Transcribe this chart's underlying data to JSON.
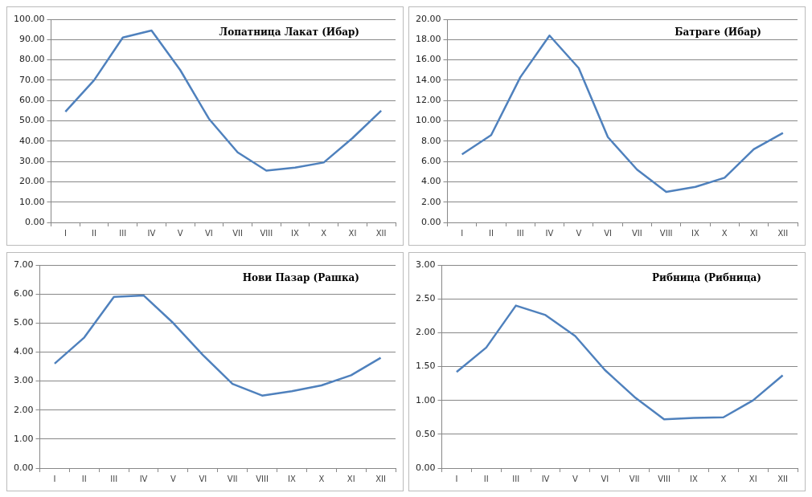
{
  "chart_data": [
    {
      "type": "line",
      "title": "Лопатница Лакат (Ибар)",
      "categories": [
        "I",
        "II",
        "III",
        "IV",
        "V",
        "VI",
        "VII",
        "VIII",
        "IX",
        "X",
        "XI",
        "XII"
      ],
      "series": [
        {
          "color": "#4f81bd",
          "values": [
            54.5,
            70,
            91,
            94.5,
            75,
            51,
            34.5,
            25.5,
            27,
            29.5,
            41.5,
            55
          ]
        }
      ],
      "ylim": [
        0,
        100
      ],
      "yticks": [
        {
          "value": 0,
          "label": "0.00"
        },
        {
          "value": 10,
          "label": "10.00"
        },
        {
          "value": 20,
          "label": "20.00"
        },
        {
          "value": 30,
          "label": "30.00"
        },
        {
          "value": 40,
          "label": "40.00"
        },
        {
          "value": 50,
          "label": "50.00"
        },
        {
          "value": 60,
          "label": "60.00"
        },
        {
          "value": 70,
          "label": "70.00"
        },
        {
          "value": 80,
          "label": "80.00"
        },
        {
          "value": 90,
          "label": "90.00"
        },
        {
          "value": 100,
          "label": "100.00"
        }
      ],
      "grid": "y",
      "legend": false,
      "marker": "none",
      "line_style": "solid"
    },
    {
      "type": "line",
      "title": "Батраге (Ибар)",
      "categories": [
        "I",
        "II",
        "III",
        "IV",
        "V",
        "VI",
        "VII",
        "VIII",
        "IX",
        "X",
        "XI",
        "XII"
      ],
      "series": [
        {
          "color": "#4f81bd",
          "values": [
            6.7,
            8.6,
            14.3,
            18.4,
            15.2,
            8.4,
            5.2,
            3.0,
            3.5,
            4.4,
            7.2,
            8.8
          ]
        }
      ],
      "ylim": [
        0,
        20
      ],
      "yticks": [
        {
          "value": 0,
          "label": "0.00"
        },
        {
          "value": 2,
          "label": "2.00"
        },
        {
          "value": 4,
          "label": "4.00"
        },
        {
          "value": 6,
          "label": "6.00"
        },
        {
          "value": 8,
          "label": "8.00"
        },
        {
          "value": 10,
          "label": "10.00"
        },
        {
          "value": 12,
          "label": "12.00"
        },
        {
          "value": 14,
          "label": "14.00"
        },
        {
          "value": 16,
          "label": "16.00"
        },
        {
          "value": 18,
          "label": "18.00"
        },
        {
          "value": 20,
          "label": "20.00"
        }
      ],
      "grid": "y",
      "legend": false,
      "marker": "none",
      "line_style": "solid"
    },
    {
      "type": "line",
      "title": "Нови Пазар (Рашка)",
      "categories": [
        "I",
        "II",
        "III",
        "IV",
        "V",
        "VI",
        "VII",
        "VIII",
        "IX",
        "X",
        "XI",
        "XII"
      ],
      "series": [
        {
          "color": "#4f81bd",
          "values": [
            3.6,
            4.5,
            5.9,
            5.95,
            5.0,
            3.9,
            2.9,
            2.5,
            2.65,
            2.85,
            3.2,
            3.8
          ]
        }
      ],
      "ylim": [
        0,
        7
      ],
      "yticks": [
        {
          "value": 0,
          "label": "0.00"
        },
        {
          "value": 1,
          "label": "1.00"
        },
        {
          "value": 2,
          "label": "2.00"
        },
        {
          "value": 3,
          "label": "3.00"
        },
        {
          "value": 4,
          "label": "4.00"
        },
        {
          "value": 5,
          "label": "5.00"
        },
        {
          "value": 6,
          "label": "6.00"
        },
        {
          "value": 7,
          "label": "7.00"
        }
      ],
      "grid": "y",
      "legend": false,
      "marker": "none",
      "line_style": "solid"
    },
    {
      "type": "line",
      "title": "Рибница (Рибница)",
      "categories": [
        "I",
        "II",
        "III",
        "IV",
        "V",
        "VI",
        "VII",
        "VIII",
        "IX",
        "X",
        "XI",
        "XII"
      ],
      "series": [
        {
          "color": "#4f81bd",
          "values": [
            1.42,
            1.78,
            2.4,
            2.26,
            1.95,
            1.45,
            1.05,
            0.72,
            0.74,
            0.75,
            1.0,
            1.37
          ]
        }
      ],
      "ylim": [
        0,
        3
      ],
      "yticks": [
        {
          "value": 0,
          "label": "0.00"
        },
        {
          "value": 0.5,
          "label": "0.50"
        },
        {
          "value": 1,
          "label": "1.00"
        },
        {
          "value": 1.5,
          "label": "1.50"
        },
        {
          "value": 2,
          "label": "2.00"
        },
        {
          "value": 2.5,
          "label": "2.50"
        },
        {
          "value": 3,
          "label": "3.00"
        }
      ],
      "grid": "y",
      "legend": false,
      "marker": "none",
      "line_style": "solid"
    }
  ]
}
